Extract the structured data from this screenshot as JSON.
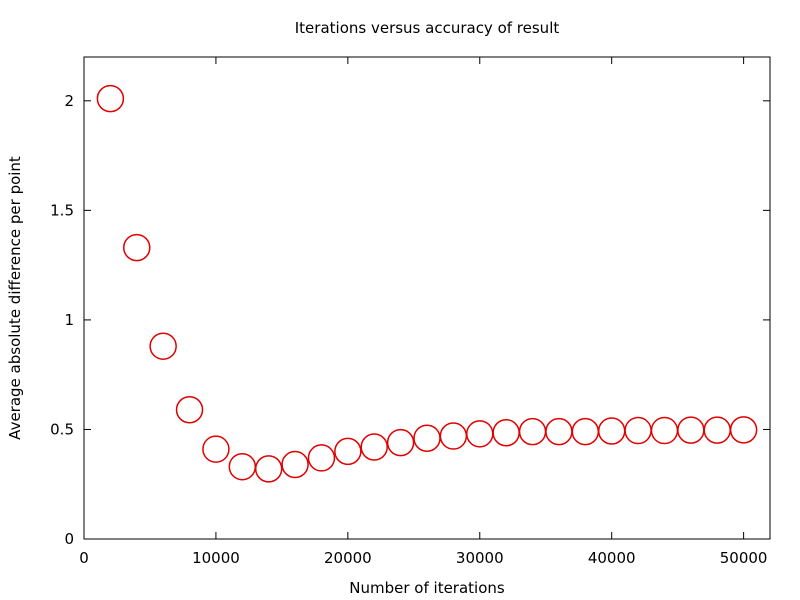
{
  "chart_data": {
    "type": "scatter",
    "title": "Iterations versus accuracy of result",
    "xlabel": "Number of iterations",
    "ylabel": "Average absolute difference per point",
    "xlim": [
      0,
      52000
    ],
    "ylim": [
      0,
      2.2
    ],
    "xticks": [
      0,
      10000,
      20000,
      30000,
      40000,
      50000
    ],
    "xtick_labels": [
      "0",
      "10000",
      "20000",
      "30000",
      "40000",
      "50000"
    ],
    "yticks": [
      0,
      0.5,
      1,
      1.5,
      2
    ],
    "ytick_labels": [
      "0",
      "0.5",
      "1",
      "1.5",
      "2"
    ],
    "grid": false,
    "legend": "none",
    "marker": "open-circle",
    "color": "#e00000",
    "series": [
      {
        "x": [
          2000,
          4000,
          6000,
          8000,
          10000,
          12000,
          14000,
          16000,
          18000,
          20000,
          22000,
          24000,
          26000,
          28000,
          30000,
          32000,
          34000,
          36000,
          38000,
          40000,
          42000,
          44000,
          46000,
          48000,
          50000
        ],
        "y": [
          2.01,
          1.33,
          0.88,
          0.59,
          0.41,
          0.33,
          0.32,
          0.34,
          0.37,
          0.4,
          0.42,
          0.44,
          0.46,
          0.47,
          0.48,
          0.485,
          0.49,
          0.49,
          0.49,
          0.493,
          0.495,
          0.495,
          0.497,
          0.497,
          0.498
        ]
      }
    ]
  }
}
